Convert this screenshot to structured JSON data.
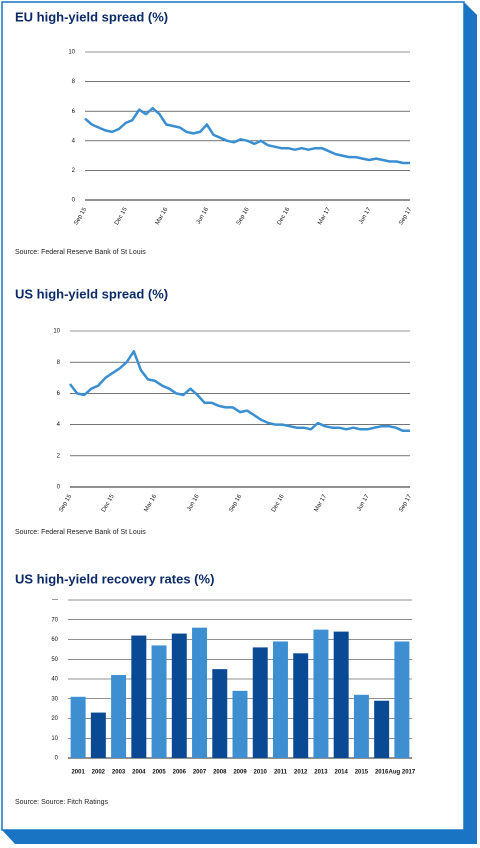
{
  "chart_data": [
    {
      "type": "line",
      "title": "EU high-yield spread (%)",
      "source": "Source: Federal Reserve Bank of St Louis",
      "color": "#3a8fd0",
      "grid": true,
      "categories": [
        "Sep 15",
        null,
        null,
        null,
        null,
        null,
        "Dec 15",
        null,
        null,
        null,
        null,
        null,
        "Mar 16",
        null,
        null,
        null,
        null,
        null,
        "Jun 16",
        null,
        null,
        null,
        null,
        null,
        "Sep 16",
        null,
        null,
        null,
        null,
        null,
        "Dec 16",
        null,
        null,
        null,
        null,
        null,
        "Mar 17",
        null,
        null,
        null,
        null,
        null,
        "Jun 17",
        null,
        null,
        null,
        null,
        null,
        "Sep 17"
      ],
      "values": [
        5.5,
        5.1,
        4.9,
        4.7,
        4.6,
        4.8,
        5.2,
        5.4,
        6.1,
        5.8,
        6.2,
        5.8,
        5.1,
        5.0,
        4.9,
        4.6,
        4.5,
        4.6,
        5.1,
        4.4,
        4.2,
        4.0,
        3.9,
        4.1,
        4.0,
        3.8,
        4.0,
        3.7,
        3.6,
        3.5,
        3.5,
        3.4,
        3.5,
        3.4,
        3.5,
        3.5,
        3.3,
        3.1,
        3.0,
        2.9,
        2.9,
        2.8,
        2.7,
        2.8,
        2.7,
        2.6,
        2.6,
        2.5,
        2.5
      ],
      "ylim": [
        0,
        10
      ],
      "yticks": [
        0,
        2,
        4,
        6,
        8,
        10
      ]
    },
    {
      "type": "line",
      "title": "US high-yield spread (%)",
      "source": "Source: Federal Reserve Bank of St Louis",
      "color": "#3a8fd0",
      "grid": true,
      "categories": [
        "Sep 15",
        null,
        null,
        null,
        null,
        null,
        "Dec 15",
        null,
        null,
        null,
        null,
        null,
        "Mar 16",
        null,
        null,
        null,
        null,
        null,
        "Jun 16",
        null,
        null,
        null,
        null,
        null,
        "Sep 16",
        null,
        null,
        null,
        null,
        null,
        "Dec 16",
        null,
        null,
        null,
        null,
        null,
        "Mar 17",
        null,
        null,
        null,
        null,
        null,
        "Jun 17",
        null,
        null,
        null,
        null,
        null,
        "Sep 17"
      ],
      "values": [
        6.6,
        6.0,
        5.9,
        6.3,
        6.5,
        7.0,
        7.3,
        7.6,
        8.0,
        8.7,
        7.5,
        6.9,
        6.8,
        6.5,
        6.3,
        6.0,
        5.9,
        6.3,
        5.9,
        5.4,
        5.4,
        5.2,
        5.1,
        5.1,
        4.8,
        4.9,
        4.6,
        4.3,
        4.1,
        4.0,
        4.0,
        3.9,
        3.8,
        3.8,
        3.7,
        4.1,
        3.9,
        3.8,
        3.8,
        3.7,
        3.8,
        3.7,
        3.7,
        3.8,
        3.9,
        3.9,
        3.8,
        3.6,
        3.6
      ],
      "ylim": [
        0,
        10
      ],
      "yticks": [
        0,
        2,
        4,
        6,
        8,
        10
      ]
    },
    {
      "type": "bar",
      "title": "US high-yield recovery rates (%)",
      "source": "Source: Source: Fitch Ratings",
      "grid": true,
      "categories": [
        "2001",
        "2002",
        "2003",
        "2004",
        "2005",
        "2006",
        "2007",
        "2008",
        "2009",
        "2010",
        "2011",
        "2012",
        "2013",
        "2014",
        "2015",
        "2016",
        "Aug 2017"
      ],
      "values": [
        31,
        23,
        42,
        62,
        57,
        63,
        66,
        45,
        34,
        56,
        59,
        53,
        65,
        64,
        32,
        29,
        59
      ],
      "colors": [
        "#3d8fd1",
        "#0a4a94",
        "#3d8fd1",
        "#0a4a94",
        "#3d8fd1",
        "#0a4a94",
        "#3d8fd1",
        "#0a4a94",
        "#3d8fd1",
        "#0a4a94",
        "#3d8fd1",
        "#0a4a94",
        "#3d8fd1",
        "#0a4a94",
        "#3d8fd1",
        "#0a4a94",
        "#3d8fd1"
      ],
      "ylim": [
        0,
        80
      ],
      "yticks": [
        0,
        10,
        20,
        30,
        40,
        50,
        60,
        70,
        {
          "value": 80,
          "label": "—"
        }
      ]
    }
  ]
}
